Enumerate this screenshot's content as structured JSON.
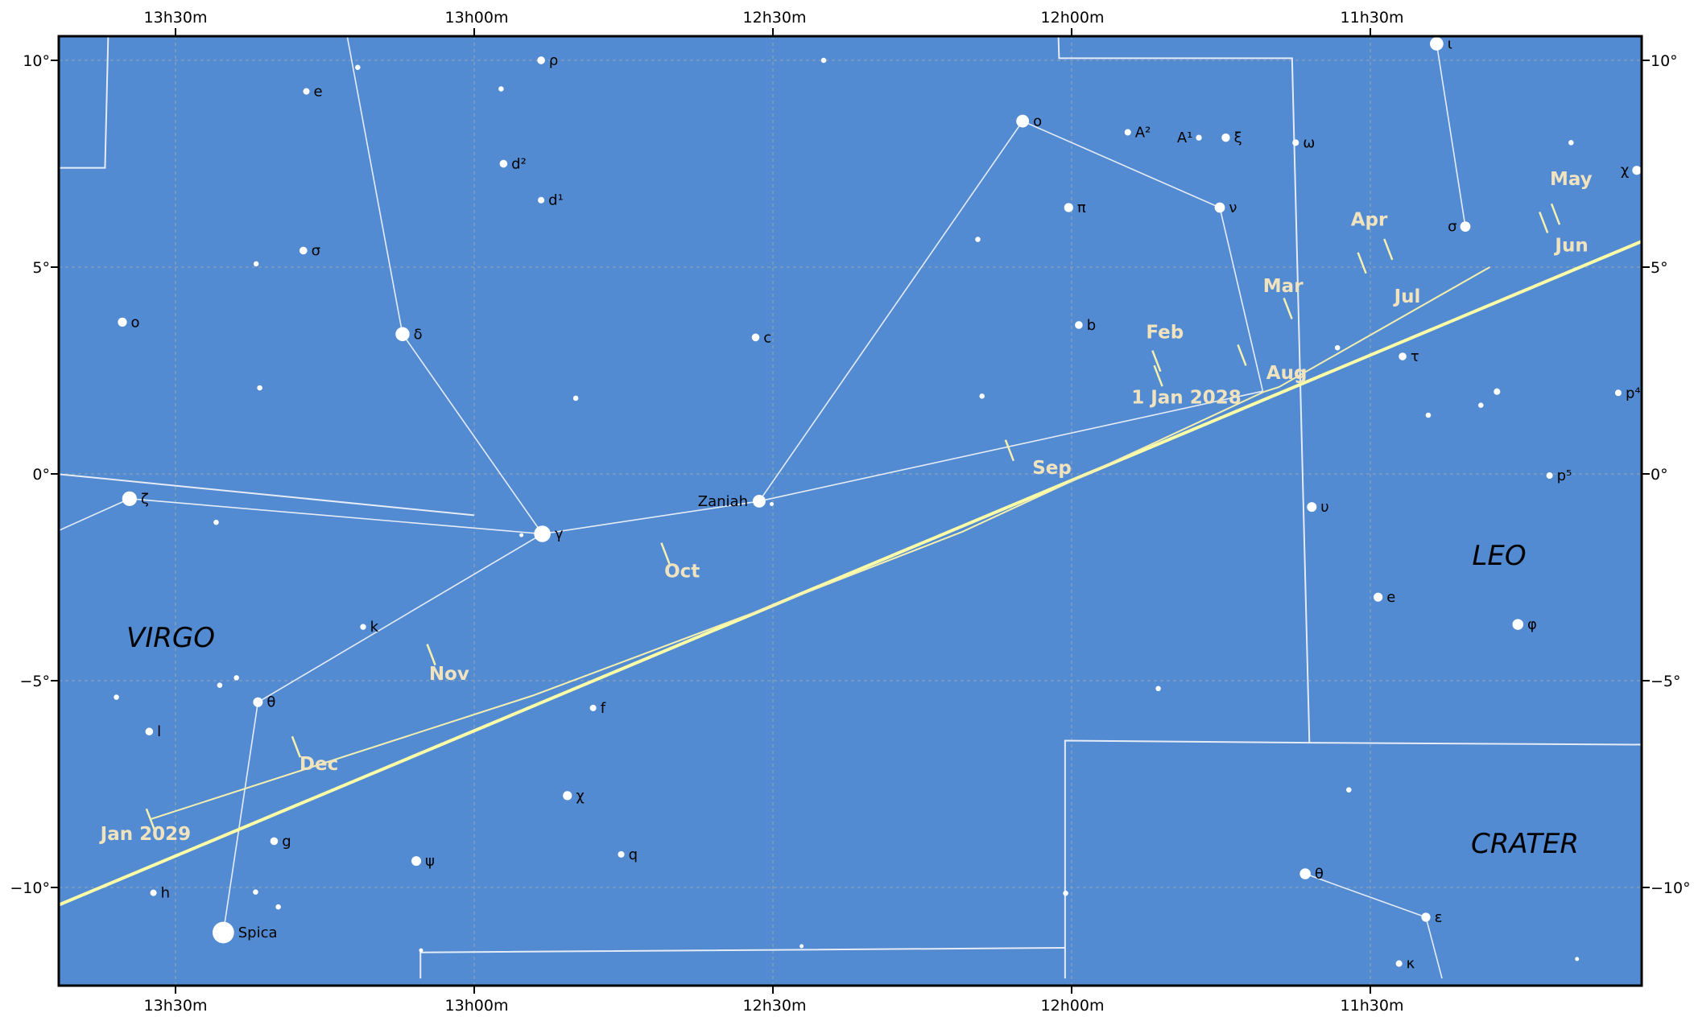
{
  "colors": {
    "sky": "#528bd1",
    "constellation_line": "#e6ecf7",
    "ecliptic": "#ffffa8",
    "path": "#f6f0b0",
    "month_text": "#f2e3bf",
    "grid": "#8aa0b8",
    "star": "#ffffff"
  },
  "ra_labels": {
    "top": [
      "13h30m",
      "13h00m",
      "12h30m",
      "12h00m",
      "11h30m"
    ],
    "bottom": [
      "13h30m",
      "13h00m",
      "12h30m",
      "12h00m",
      "11h30m"
    ]
  },
  "dec_labels": {
    "left": [
      "10°",
      "5°",
      "0°",
      "−5°",
      "−10°"
    ],
    "right": [
      "10°",
      "5°",
      "0°",
      "−5°",
      "−10°"
    ]
  },
  "constellations": [
    "VIRGO",
    "LEO",
    "CRATER"
  ],
  "stars": [
    {
      "label": "ι",
      "ra": 11.389,
      "dec": 10.4,
      "mag": 2.7
    },
    {
      "label": "ρ",
      "ra": 12.888,
      "dec": 10.0,
      "mag": 1.8
    },
    {
      "label": "e",
      "ra": 13.281,
      "dec": 9.25,
      "mag": 1.6
    },
    {
      "label": "",
      "ra": 13.195,
      "dec": 9.83,
      "mag": 1.4
    },
    {
      "label": "",
      "ra": 12.955,
      "dec": 9.31,
      "mag": 1.4
    },
    {
      "label": "",
      "ra": 12.415,
      "dec": 10.0,
      "mag": 1.4
    },
    {
      "label": "o",
      "ra": 12.082,
      "dec": 8.53,
      "mag": 2.6
    },
    {
      "label": "A²",
      "ra": 11.906,
      "dec": 8.26,
      "mag": 1.6
    },
    {
      "label": "A¹",
      "ra": 11.787,
      "dec": 8.13,
      "mag": 1.5
    },
    {
      "label": "ξ",
      "ra": 11.742,
      "dec": 8.13,
      "mag": 1.9
    },
    {
      "label": "ω",
      "ra": 11.625,
      "dec": 8.01,
      "mag": 1.6
    },
    {
      "label": "d²",
      "ra": 12.951,
      "dec": 7.5,
      "mag": 1.8
    },
    {
      "label": "d¹",
      "ra": 12.888,
      "dec": 6.62,
      "mag": 1.6
    },
    {
      "label": "χ",
      "ra": 11.054,
      "dec": 7.34,
      "mag": 2.0
    },
    {
      "label": "",
      "ra": 11.164,
      "dec": 8.01,
      "mag": 1.4
    },
    {
      "label": "π",
      "ra": 12.005,
      "dec": 6.44,
      "mag": 2.0
    },
    {
      "label": "ν",
      "ra": 11.752,
      "dec": 6.44,
      "mag": 2.2
    },
    {
      "label": "σ",
      "ra": 11.341,
      "dec": 5.98,
      "mag": 2.2
    },
    {
      "label": "σ",
      "ra": 13.286,
      "dec": 5.4,
      "mag": 1.8
    },
    {
      "label": "",
      "ra": 13.365,
      "dec": 5.08,
      "mag": 1.4
    },
    {
      "label": "",
      "ra": 12.157,
      "dec": 5.67,
      "mag": 1.4
    },
    {
      "label": "o",
      "ra": 13.589,
      "dec": 3.67,
      "mag": 2.0
    },
    {
      "label": "δ",
      "ra": 13.12,
      "dec": 3.38,
      "mag": 2.8
    },
    {
      "label": "c",
      "ra": 12.529,
      "dec": 3.3,
      "mag": 1.8
    },
    {
      "label": "b",
      "ra": 11.988,
      "dec": 3.6,
      "mag": 1.8
    },
    {
      "label": "τ",
      "ra": 11.446,
      "dec": 2.84,
      "mag": 1.8
    },
    {
      "label": "",
      "ra": 11.555,
      "dec": 3.05,
      "mag": 1.4
    },
    {
      "label": "",
      "ra": 13.359,
      "dec": 2.08,
      "mag": 1.4
    },
    {
      "label": "",
      "ra": 12.83,
      "dec": 1.83,
      "mag": 1.4
    },
    {
      "label": "",
      "ra": 12.15,
      "dec": 1.88,
      "mag": 1.4
    },
    {
      "label": "p⁴",
      "ra": 11.085,
      "dec": 1.96,
      "mag": 1.6
    },
    {
      "label": "",
      "ra": 11.288,
      "dec": 1.99,
      "mag": 1.6
    },
    {
      "label": "",
      "ra": 11.315,
      "dec": 1.66,
      "mag": 1.4
    },
    {
      "label": "",
      "ra": 11.403,
      "dec": 1.42,
      "mag": 1.4
    },
    {
      "label": "ζ",
      "ra": 13.577,
      "dec": -0.6,
      "mag": 2.9
    },
    {
      "label": "",
      "ra": 13.432,
      "dec": -1.17,
      "mag": 1.4
    },
    {
      "label": "γ",
      "ra": 12.886,
      "dec": -1.45,
      "mag": 3.2
    },
    {
      "label": "",
      "ra": 12.921,
      "dec": -1.48,
      "mag": 1.2
    },
    {
      "label": "Zaniah",
      "ra": 12.523,
      "dec": -0.66,
      "mag": 2.6
    },
    {
      "label": "",
      "ra": 12.502,
      "dec": -0.73,
      "mag": 1.2
    },
    {
      "label": "p⁵",
      "ra": 11.2,
      "dec": -0.04,
      "mag": 1.6
    },
    {
      "label": "υ",
      "ra": 11.598,
      "dec": -0.8,
      "mag": 2.1
    },
    {
      "label": "e",
      "ra": 11.487,
      "dec": -2.98,
      "mag": 2.0
    },
    {
      "label": "φ",
      "ra": 11.253,
      "dec": -3.64,
      "mag": 2.3
    },
    {
      "label": "k",
      "ra": 13.186,
      "dec": -3.7,
      "mag": 1.5
    },
    {
      "label": "",
      "ra": 13.398,
      "dec": -4.93,
      "mag": 1.4
    },
    {
      "label": "",
      "ra": 13.426,
      "dec": -5.11,
      "mag": 1.4
    },
    {
      "label": "",
      "ra": 13.599,
      "dec": -5.4,
      "mag": 1.4
    },
    {
      "label": "θ",
      "ra": 13.362,
      "dec": -5.52,
      "mag": 2.1
    },
    {
      "label": "",
      "ra": 11.855,
      "dec": -5.19,
      "mag": 1.4
    },
    {
      "label": "l",
      "ra": 13.544,
      "dec": -6.23,
      "mag": 1.8
    },
    {
      "label": "f",
      "ra": 12.801,
      "dec": -5.66,
      "mag": 1.6
    },
    {
      "label": "χ",
      "ra": 12.844,
      "dec": -7.78,
      "mag": 2.0
    },
    {
      "label": "",
      "ra": 11.536,
      "dec": -7.64,
      "mag": 1.4
    },
    {
      "label": "g",
      "ra": 13.335,
      "dec": -8.88,
      "mag": 1.8
    },
    {
      "label": "ψ",
      "ra": 13.097,
      "dec": -9.36,
      "mag": 2.1
    },
    {
      "label": "q",
      "ra": 12.754,
      "dec": -9.2,
      "mag": 1.6
    },
    {
      "label": "θ",
      "ra": 11.609,
      "dec": -9.67,
      "mag": 2.3
    },
    {
      "label": "ε",
      "ra": 11.407,
      "dec": -10.72,
      "mag": 2.0
    },
    {
      "label": "h",
      "ra": 13.537,
      "dec": -10.13,
      "mag": 1.6
    },
    {
      "label": "",
      "ra": 13.366,
      "dec": -10.11,
      "mag": 1.4
    },
    {
      "label": "",
      "ra": 13.328,
      "dec": -10.47,
      "mag": 1.4
    },
    {
      "label": "",
      "ra": 12.01,
      "dec": -10.14,
      "mag": 1.4
    },
    {
      "label": "Spica",
      "ra": 13.42,
      "dec": -11.09,
      "mag": 4.0
    },
    {
      "label": "",
      "ra": 13.089,
      "dec": -11.52,
      "mag": 1.2
    },
    {
      "label": "",
      "ra": 12.452,
      "dec": -11.42,
      "mag": 1.2
    },
    {
      "label": "κ",
      "ra": 11.452,
      "dec": -11.84,
      "mag": 1.6
    },
    {
      "label": "",
      "ra": 11.154,
      "dec": -11.73,
      "mag": 1.2
    }
  ],
  "constellation_lines": [
    [
      [
        13.12,
        3.38
      ],
      [
        12.886,
        -1.45
      ]
    ],
    [
      [
        13.12,
        3.38
      ],
      [
        13.218,
        11.0
      ]
    ],
    [
      [
        12.886,
        -1.45
      ],
      [
        13.577,
        -0.6
      ]
    ],
    [
      [
        13.577,
        -0.6
      ],
      [
        13.7,
        -1.4
      ]
    ],
    [
      [
        12.886,
        -1.45
      ],
      [
        12.523,
        -0.66
      ]
    ],
    [
      [
        12.523,
        -0.66
      ],
      [
        12.082,
        8.53
      ]
    ],
    [
      [
        12.082,
        8.53
      ],
      [
        11.752,
        6.44
      ]
    ],
    [
      [
        11.752,
        6.44
      ],
      [
        11.68,
        2.0
      ]
    ],
    [
      [
        12.523,
        -0.66
      ],
      [
        11.68,
        2.0
      ]
    ],
    [
      [
        12.886,
        -1.45
      ],
      [
        13.362,
        -5.52
      ]
    ],
    [
      [
        13.362,
        -5.52
      ],
      [
        13.42,
        -11.09
      ]
    ],
    [
      [
        11.389,
        10.4
      ],
      [
        11.341,
        5.98
      ]
    ],
    [
      [
        11.609,
        -9.67
      ],
      [
        11.407,
        -10.72
      ]
    ],
    [
      [
        11.407,
        -10.72
      ],
      [
        11.38,
        -12.2
      ]
    ]
  ],
  "boundaries": [
    [
      [
        13.7,
        7.4
      ],
      [
        13.618,
        7.4
      ],
      [
        13.612,
        11.0
      ]
    ],
    [
      [
        13.7,
        0.0
      ],
      [
        13.0,
        -1.0
      ]
    ],
    [
      [
        12.023,
        11.0
      ],
      [
        12.021,
        10.05
      ],
      [
        11.631,
        10.05
      ],
      [
        11.602,
        -6.5
      ]
    ],
    [
      [
        11.0,
        -6.55
      ],
      [
        11.602,
        -6.5
      ],
      [
        12.011,
        -6.45
      ],
      [
        12.011,
        -12.2
      ]
    ],
    [
      [
        12.011,
        -11.46
      ],
      [
        13.09,
        -11.57
      ],
      [
        13.09,
        -12.2
      ]
    ]
  ],
  "ecliptic": [
    [
      13.7,
      -10.45
    ],
    [
      11.0,
      5.9
    ]
  ],
  "path": [
    [
      13.542,
      -8.35
    ],
    [
      12.902,
      -5.36
    ],
    [
      12.516,
      -3.27
    ],
    [
      12.183,
      -1.4
    ],
    [
      11.869,
      0.7
    ],
    [
      11.679,
      1.98
    ],
    [
      11.653,
      2.1
    ],
    [
      11.3,
      5.0
    ]
  ],
  "path_ticks": [
    {
      "ra": 13.542,
      "dec": -8.35,
      "label": "Jan 2029",
      "lra": 13.55,
      "ldec": -8.85
    },
    {
      "ra": 13.298,
      "dec": -6.6,
      "label": "Dec",
      "lra": 13.26,
      "ldec": -7.16
    },
    {
      "ra": 13.072,
      "dec": -4.37,
      "label": "Nov",
      "lra": 13.042,
      "ldec": -4.98
    },
    {
      "ra": 12.68,
      "dec": -1.92,
      "label": "Oct",
      "lra": 12.652,
      "ldec": -2.5
    },
    {
      "ra": 12.104,
      "dec": 0.57,
      "label": "Sep",
      "lra": 12.033,
      "ldec": 0.0
    },
    {
      "ra": 11.715,
      "dec": 2.87,
      "label": "Aug",
      "lra": 11.64,
      "ldec": 2.3
    },
    {
      "ra": 11.638,
      "dec": 4.0,
      "label": "Mar",
      "lra": 11.646,
      "ldec": 4.4
    },
    {
      "ra": 11.514,
      "dec": 5.1,
      "label": "Jul",
      "lra": 11.438,
      "ldec": 4.14
    },
    {
      "ra": 11.47,
      "dec": 5.43,
      "label": "Apr",
      "lra": 11.502,
      "ldec": 6.0
    },
    {
      "ra": 11.19,
      "dec": 6.28,
      "label": "May",
      "lra": 11.164,
      "ldec": 6.98
    },
    {
      "ra": 11.21,
      "dec": 6.08,
      "label": "Jun",
      "lra": 11.163,
      "ldec": 5.38
    },
    {
      "ra": 11.858,
      "dec": 2.73,
      "label": "Feb",
      "lra": 11.844,
      "ldec": 3.28
    },
    {
      "ra": 11.855,
      "dec": 2.37,
      "label": "1 Jan 2028",
      "lra": 11.808,
      "ldec": 1.7
    }
  ]
}
